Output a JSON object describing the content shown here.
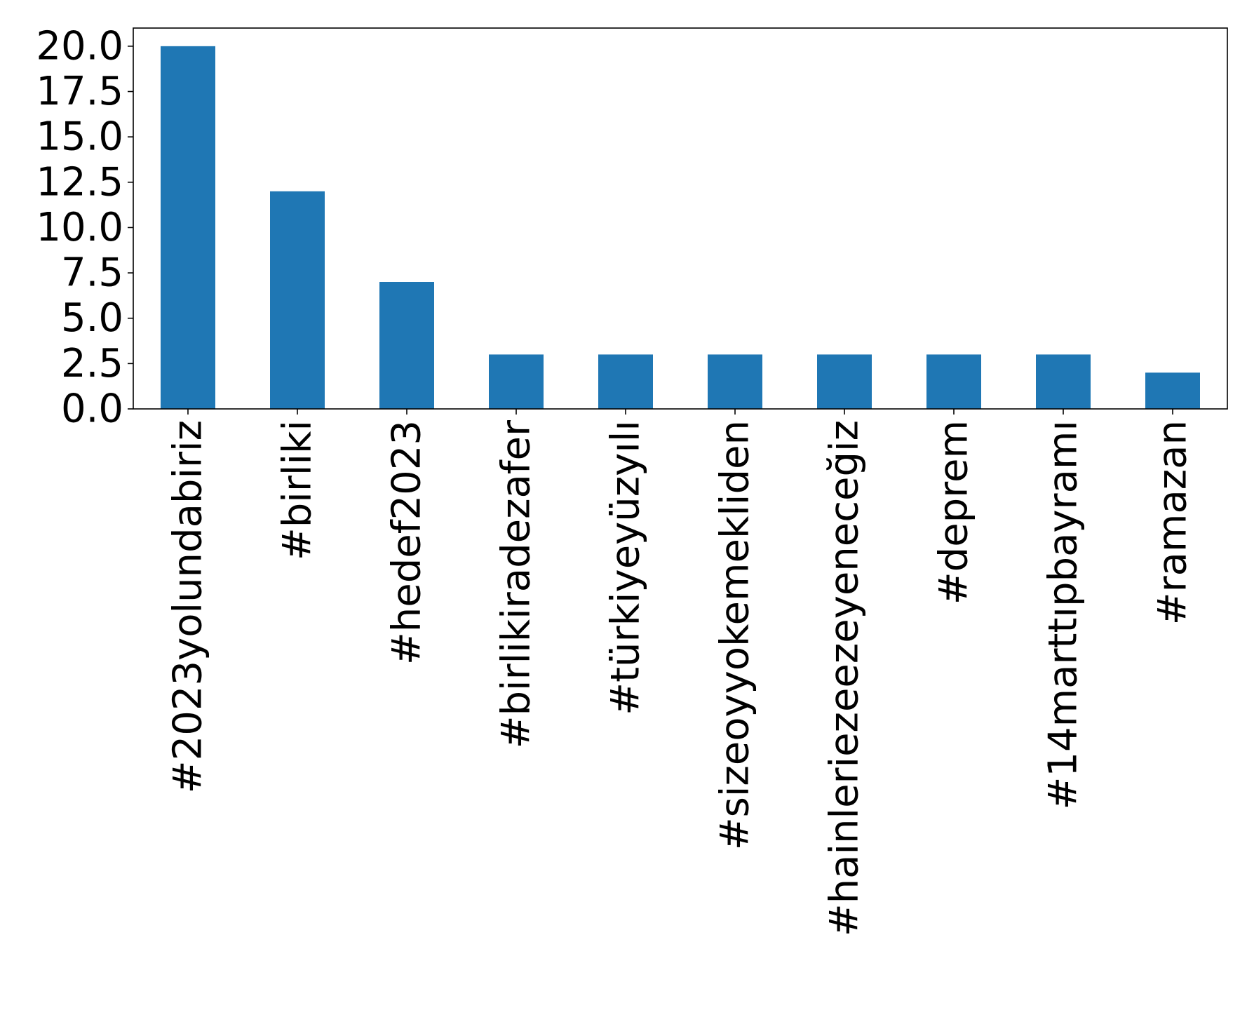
{
  "chart_data": {
    "type": "bar",
    "title": "",
    "xlabel": "",
    "ylabel": "",
    "categories": [
      "#2023yolundabiriz",
      "#birliki",
      "#hedef2023",
      "#birlikiradezafer",
      "#türkiyeyüzyılı",
      "#sizeoyyokemekliden",
      "#hainleriezeezeyeneceğiz",
      "#deprem",
      "#14marttıpbayramı",
      "#ramazan"
    ],
    "values": [
      20,
      12,
      7,
      3,
      3,
      3,
      3,
      3,
      3,
      2
    ],
    "ylim": [
      0,
      21
    ],
    "yticks": [
      0.0,
      2.5,
      5.0,
      7.5,
      10.0,
      12.5,
      15.0,
      17.5,
      20.0
    ],
    "ytick_labels": [
      "0.0",
      "2.5",
      "5.0",
      "7.5",
      "10.0",
      "12.5",
      "15.0",
      "17.5",
      "20.0"
    ],
    "grid": false,
    "legend": "none",
    "bar_color": "#1f77b4"
  }
}
